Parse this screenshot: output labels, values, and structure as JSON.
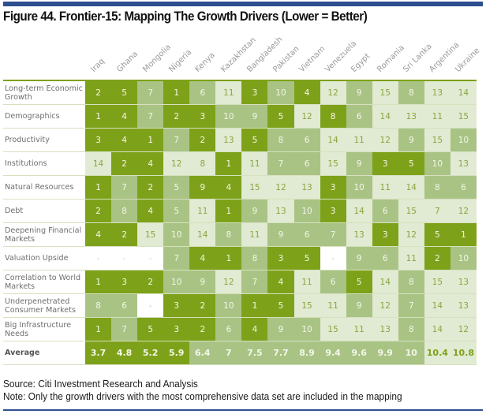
{
  "title": "Figure 44. Frontier-15: Mapping The Growth Drivers (Lower = Better)",
  "footer": {
    "source": "Source: Citi Investment Research and Analysis",
    "note": "Note: Only the growth drivers with the most comprehensive data set are included in the mapping"
  },
  "colors": {
    "top_bar": "#2e4e8f",
    "dark_green": "#7ea11a",
    "medium_green": "#a9c384",
    "light_green": "#e1ead2",
    "blank": "#ffffff"
  },
  "chart_data": {
    "type": "heatmap",
    "title": "Figure 44. Frontier-15: Mapping The Growth Drivers (Lower = Better)",
    "columns": [
      "Iraq",
      "Ghana",
      "Mongolia",
      "Nigeria",
      "Kenya",
      "Kazakhstan",
      "Bangladesh",
      "Pakistan",
      "Vietnam",
      "Venezuela",
      "Egypt",
      "Romania",
      "Sri Lanka",
      "Argentina",
      "Ukraine"
    ],
    "shade_legend": {
      "D": "dark green",
      "M": "medium green",
      "L": "light green",
      "W": "blank (no data)"
    },
    "rows": [
      {
        "label": "Long-term Economic Growth",
        "values": [
          "2",
          "5",
          "7",
          "1",
          "6",
          "11",
          "3",
          "10",
          "4",
          "12",
          "9",
          "15",
          "8",
          "13",
          "14"
        ],
        "shades": [
          "D",
          "D",
          "M",
          "D",
          "M",
          "L",
          "D",
          "M",
          "D",
          "L",
          "M",
          "L",
          "M",
          "L",
          "L"
        ]
      },
      {
        "label": "Demographics",
        "values": [
          "1",
          "4",
          "7",
          "2",
          "3",
          "10",
          "9",
          "5",
          "12",
          "8",
          "6",
          "14",
          "13",
          "11",
          "15"
        ],
        "shades": [
          "D",
          "D",
          "M",
          "D",
          "D",
          "M",
          "M",
          "D",
          "L",
          "D",
          "M",
          "L",
          "L",
          "L",
          "L"
        ]
      },
      {
        "label": "Productivity",
        "values": [
          "3",
          "4",
          "1",
          "7",
          "2",
          "13",
          "5",
          "8",
          "6",
          "14",
          "11",
          "12",
          "9",
          "15",
          "10"
        ],
        "shades": [
          "D",
          "D",
          "D",
          "M",
          "D",
          "L",
          "D",
          "M",
          "M",
          "L",
          "L",
          "L",
          "M",
          "L",
          "M"
        ]
      },
      {
        "label": "Institutions",
        "values": [
          "14",
          "2",
          "4",
          "12",
          "8",
          "1",
          "11",
          "7",
          "6",
          "15",
          "9",
          "3",
          "5",
          "10",
          "13"
        ],
        "shades": [
          "L",
          "D",
          "D",
          "L",
          "L",
          "D",
          "L",
          "M",
          "M",
          "L",
          "M",
          "D",
          "D",
          "M",
          "L"
        ]
      },
      {
        "label": "Natural Resources",
        "values": [
          "1",
          "7",
          "2",
          "5",
          "9",
          "4",
          "15",
          "12",
          "13",
          "3",
          "10",
          "11",
          "14",
          "8",
          "6"
        ],
        "shades": [
          "D",
          "M",
          "D",
          "M",
          "D",
          "D",
          "L",
          "L",
          "L",
          "D",
          "M",
          "L",
          "L",
          "M",
          "M"
        ]
      },
      {
        "label": "Debt",
        "values": [
          "2",
          "8",
          "4",
          "5",
          "11",
          "1",
          "9",
          "13",
          "10",
          "3",
          "14",
          "6",
          "15",
          "7",
          "12"
        ],
        "shades": [
          "D",
          "M",
          "D",
          "M",
          "L",
          "D",
          "M",
          "L",
          "M",
          "D",
          "L",
          "M",
          "L",
          "L",
          "L"
        ]
      },
      {
        "label": "Deepening Financial Markets",
        "values": [
          "4",
          "2",
          "15",
          "10",
          "14",
          "8",
          "11",
          "9",
          "6",
          "7",
          "13",
          "3",
          "12",
          "5",
          "1"
        ],
        "shades": [
          "D",
          "D",
          "L",
          "M",
          "L",
          "M",
          "L",
          "M",
          "M",
          "M",
          "L",
          "D",
          "L",
          "D",
          "D"
        ]
      },
      {
        "label": "Valuation Upside",
        "values": [
          "-",
          "-",
          "-",
          "7",
          "4",
          "1",
          "8",
          "3",
          "5",
          "-",
          "9",
          "6",
          "11",
          "2",
          "10"
        ],
        "shades": [
          "W",
          "W",
          "W",
          "M",
          "D",
          "D",
          "M",
          "D",
          "D",
          "W",
          "M",
          "M",
          "L",
          "D",
          "M"
        ]
      },
      {
        "label": "Correlation to World Markets",
        "values": [
          "1",
          "3",
          "2",
          "10",
          "9",
          "12",
          "7",
          "4",
          "11",
          "6",
          "5",
          "14",
          "8",
          "15",
          "13"
        ],
        "shades": [
          "D",
          "D",
          "D",
          "M",
          "M",
          "L",
          "M",
          "D",
          "L",
          "M",
          "D",
          "L",
          "M",
          "L",
          "L"
        ]
      },
      {
        "label": "Underpenetrated Consumer Markets",
        "values": [
          "8",
          "6",
          "-",
          "3",
          "2",
          "10",
          "1",
          "5",
          "15",
          "11",
          "9",
          "12",
          "7",
          "14",
          "13"
        ],
        "shades": [
          "M",
          "M",
          "W",
          "D",
          "D",
          "M",
          "D",
          "D",
          "L",
          "L",
          "M",
          "L",
          "M",
          "L",
          "L"
        ]
      },
      {
        "label": "Big Infrastructure Needs",
        "values": [
          "1",
          "7",
          "5",
          "3",
          "2",
          "6",
          "4",
          "9",
          "10",
          "15",
          "11",
          "13",
          "8",
          "14",
          "12"
        ],
        "shades": [
          "D",
          "M",
          "D",
          "D",
          "D",
          "M",
          "D",
          "M",
          "M",
          "L",
          "L",
          "L",
          "M",
          "L",
          "L"
        ]
      }
    ],
    "average": {
      "label": "Average",
      "values": [
        "3.7",
        "4.8",
        "5.2",
        "5.9",
        "6.4",
        "7",
        "7.5",
        "7.7",
        "8.9",
        "9.4",
        "9.6",
        "9.9",
        "10",
        "10.4",
        "10.8"
      ],
      "shades": [
        "D",
        "D",
        "D",
        "D",
        "M",
        "M",
        "M",
        "M",
        "M",
        "M",
        "M",
        "M",
        "M",
        "L",
        "L"
      ]
    },
    "note": "Lower = Better"
  }
}
